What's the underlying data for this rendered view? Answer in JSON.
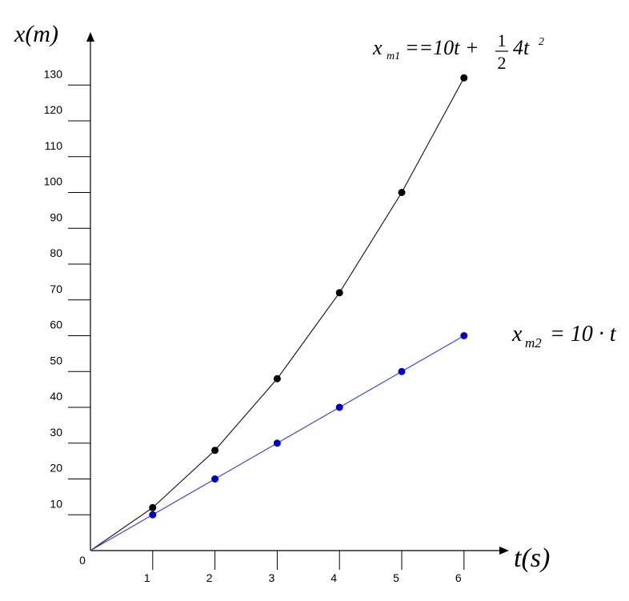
{
  "chart_data": {
    "type": "line",
    "y_axis_label": "x(m)",
    "x_axis_label": "t(s)",
    "x": [
      0,
      1,
      2,
      3,
      4,
      5,
      6
    ],
    "series": [
      {
        "name_parts": [
          "x",
          "m1",
          "==10t +",
          "1",
          "2",
          "4t",
          "2"
        ],
        "color": "#222222",
        "marker_color": "#000000",
        "values": [
          0,
          12,
          28,
          48,
          72,
          100,
          132
        ]
      },
      {
        "name_parts": [
          "x",
          "m2",
          "= 10 · t"
        ],
        "color": "#3344ff",
        "marker_color": "#0000cc",
        "values": [
          0,
          10,
          20,
          30,
          40,
          50,
          60
        ]
      }
    ],
    "xlim": [
      0,
      6.65
    ],
    "ylim": [
      0,
      143.5
    ],
    "xticks": [
      0,
      1,
      2,
      3,
      4,
      5,
      6
    ],
    "yticks": [
      10,
      20,
      30,
      40,
      50,
      60,
      70,
      80,
      90,
      100,
      110,
      120,
      130
    ]
  }
}
